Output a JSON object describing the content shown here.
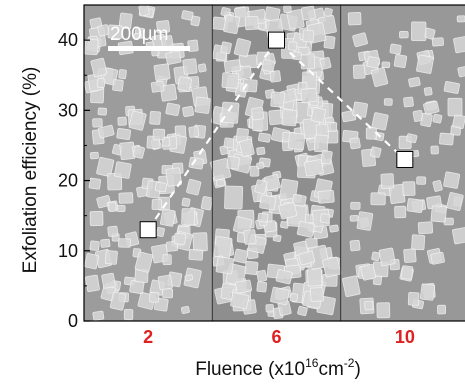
{
  "colors": {
    "category_label": "#e02020",
    "panel_bg": "#9a9a9a",
    "flake": "#d8d8d8",
    "marker_fill": "#ffffff",
    "dashed_line": "#ffffff"
  },
  "scale_bar": {
    "label": "200µm"
  },
  "chart_data": {
    "type": "line",
    "xlabel": "Fluence (x10",
    "xlabel_exp": "16",
    "xlabel_unit": "cm",
    "xlabel_unit_exp": "-2",
    "xlabel_close": ")",
    "ylabel": "Exfoliation efficiency (%)",
    "ylim": [
      0,
      45
    ],
    "yticks": [
      0,
      10,
      20,
      30,
      40
    ],
    "categories": [
      "2",
      "6",
      "10"
    ],
    "series": [
      {
        "values": [
          13,
          40,
          23
        ],
        "marker": "square",
        "line_style": "dashed",
        "color": "#ffffff"
      }
    ],
    "background": "SEM micrographs (one panel per fluence)",
    "grid": false
  }
}
